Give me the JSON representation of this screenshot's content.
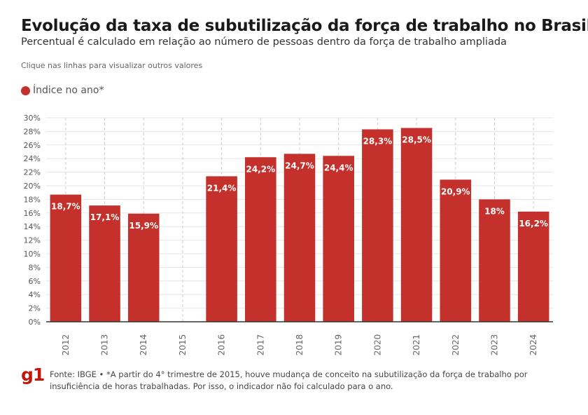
{
  "header": {
    "title": "Evolução da taxa de subutilização da força de trabalho no Brasil",
    "subtitle": "Percentual é calculado em relação ao número de pessoas dentro da força de trabalho ampliada",
    "hint": "Clique nas linhas para visualizar outros valores"
  },
  "legend": {
    "label": "Índice no ano*"
  },
  "footer": {
    "logo": "g1",
    "source": "Fonte: IBGE • *A partir do 4° trimestre de 2015, houve mudança de conceito na subutilização da força de trabalho por insuficiência de horas trabalhadas. Por isso, o indicador não foi calculado para o ano."
  },
  "chart_data": {
    "type": "bar",
    "categories": [
      "2012",
      "2013",
      "2014",
      "2015",
      "2016",
      "2017",
      "2018",
      "2019",
      "2020",
      "2021",
      "2022",
      "2023",
      "2024"
    ],
    "series": [
      {
        "name": "Índice no ano*",
        "values": [
          18.7,
          17.1,
          15.9,
          null,
          21.4,
          24.2,
          24.7,
          24.4,
          28.3,
          28.5,
          20.9,
          18.0,
          16.2
        ],
        "labels": [
          "18,7%",
          "17,1%",
          "15,9%",
          "",
          "21,4%",
          "24,2%",
          "24,7%",
          "24,4%",
          "28,3%",
          "28,5%",
          "20,9%",
          "18%",
          "16,2%"
        ]
      }
    ],
    "ylim": [
      0,
      30
    ],
    "yticks": [
      0,
      2,
      4,
      6,
      8,
      10,
      12,
      14,
      16,
      18,
      20,
      22,
      24,
      26,
      28,
      30
    ],
    "ytick_labels": [
      "0%",
      "2%",
      "4%",
      "6%",
      "8%",
      "10%",
      "12%",
      "14%",
      "16%",
      "18%",
      "20%",
      "22%",
      "24%",
      "26%",
      "28%",
      "30%"
    ],
    "grid": true,
    "colors": {
      "bar": "#c4302b",
      "bar_label": "#ffffff",
      "grid": "#e6e6e6",
      "axis": "#333333"
    }
  }
}
